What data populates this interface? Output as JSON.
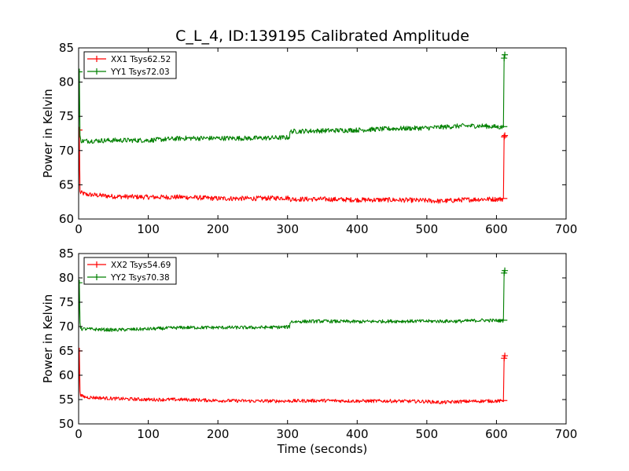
{
  "figure": {
    "title": "C_L_4, ID:139195 Calibrated Amplitude",
    "xlabel": "Time (seconds)",
    "colors": {
      "red": "#ff0000",
      "green": "#008000"
    }
  },
  "chart_data": [
    {
      "type": "line",
      "xlim": [
        0,
        700
      ],
      "ylim": [
        60,
        85
      ],
      "xticks": [
        0,
        100,
        200,
        300,
        400,
        500,
        600,
        700
      ],
      "yticks": [
        60,
        65,
        70,
        75,
        80,
        85
      ],
      "ylabel": "Power in Kelvin",
      "xlabel": "",
      "legend": "top-left",
      "series": [
        {
          "name": "XX1 Tsys62.52",
          "color": "#ff0000",
          "x": [
            0,
            1,
            2,
            3,
            5,
            10,
            50,
            100,
            150,
            200,
            250,
            300,
            303,
            304,
            350,
            400,
            450,
            500,
            520,
            550,
            580,
            609,
            610,
            611,
            612
          ],
          "y": [
            63.5,
            73,
            64,
            63.8,
            63.8,
            63.6,
            63.3,
            63.2,
            63.2,
            63.0,
            63.0,
            63.1,
            63.0,
            62.9,
            62.9,
            62.8,
            62.8,
            62.7,
            62.6,
            62.8,
            62.9,
            62.9,
            63.0,
            72.0,
            72.2
          ]
        },
        {
          "name": "YY1 Tsys72.03",
          "color": "#008000",
          "x": [
            0,
            1,
            2,
            3,
            5,
            10,
            50,
            100,
            150,
            200,
            250,
            300,
            303,
            304,
            350,
            400,
            450,
            500,
            550,
            580,
            609,
            610,
            611,
            612
          ],
          "y": [
            71.5,
            81.5,
            72,
            71.5,
            71.4,
            71.4,
            71.5,
            71.5,
            71.8,
            71.8,
            71.8,
            71.9,
            72.0,
            72.8,
            72.9,
            73.0,
            73.2,
            73.3,
            73.6,
            73.6,
            73.4,
            73.5,
            83.5,
            84.0
          ]
        }
      ]
    },
    {
      "type": "line",
      "xlim": [
        0,
        700
      ],
      "ylim": [
        50,
        85
      ],
      "xticks": [
        0,
        100,
        200,
        300,
        400,
        500,
        600,
        700
      ],
      "yticks": [
        50,
        55,
        60,
        65,
        70,
        75,
        80,
        85
      ],
      "ylabel": "Power in Kelvin",
      "xlabel": "Time (seconds)",
      "legend": "top-left",
      "series": [
        {
          "name": "XX2 Tsys54.69",
          "color": "#ff0000",
          "x": [
            0,
            1,
            2,
            3,
            5,
            10,
            50,
            100,
            150,
            200,
            250,
            300,
            350,
            400,
            450,
            500,
            520,
            550,
            580,
            609,
            610,
            611,
            612
          ],
          "y": [
            55.5,
            65,
            57,
            55.8,
            55.7,
            55.5,
            55.2,
            55.0,
            55.0,
            54.8,
            54.7,
            54.7,
            54.8,
            54.7,
            54.7,
            54.6,
            54.4,
            54.6,
            54.7,
            54.7,
            54.8,
            63.5,
            64.0
          ]
        },
        {
          "name": "YY2 Tsys70.38",
          "color": "#008000",
          "x": [
            0,
            1,
            2,
            3,
            5,
            10,
            50,
            100,
            150,
            200,
            250,
            300,
            303,
            304,
            350,
            400,
            450,
            500,
            550,
            580,
            609,
            610,
            611,
            612
          ],
          "y": [
            69.5,
            79,
            71,
            69.6,
            69.5,
            69.5,
            69.3,
            69.5,
            69.8,
            69.8,
            69.8,
            69.9,
            70.0,
            71.0,
            71.1,
            71.0,
            71.1,
            71.1,
            71.1,
            71.3,
            71.2,
            71.3,
            81.0,
            81.5
          ]
        }
      ]
    }
  ]
}
